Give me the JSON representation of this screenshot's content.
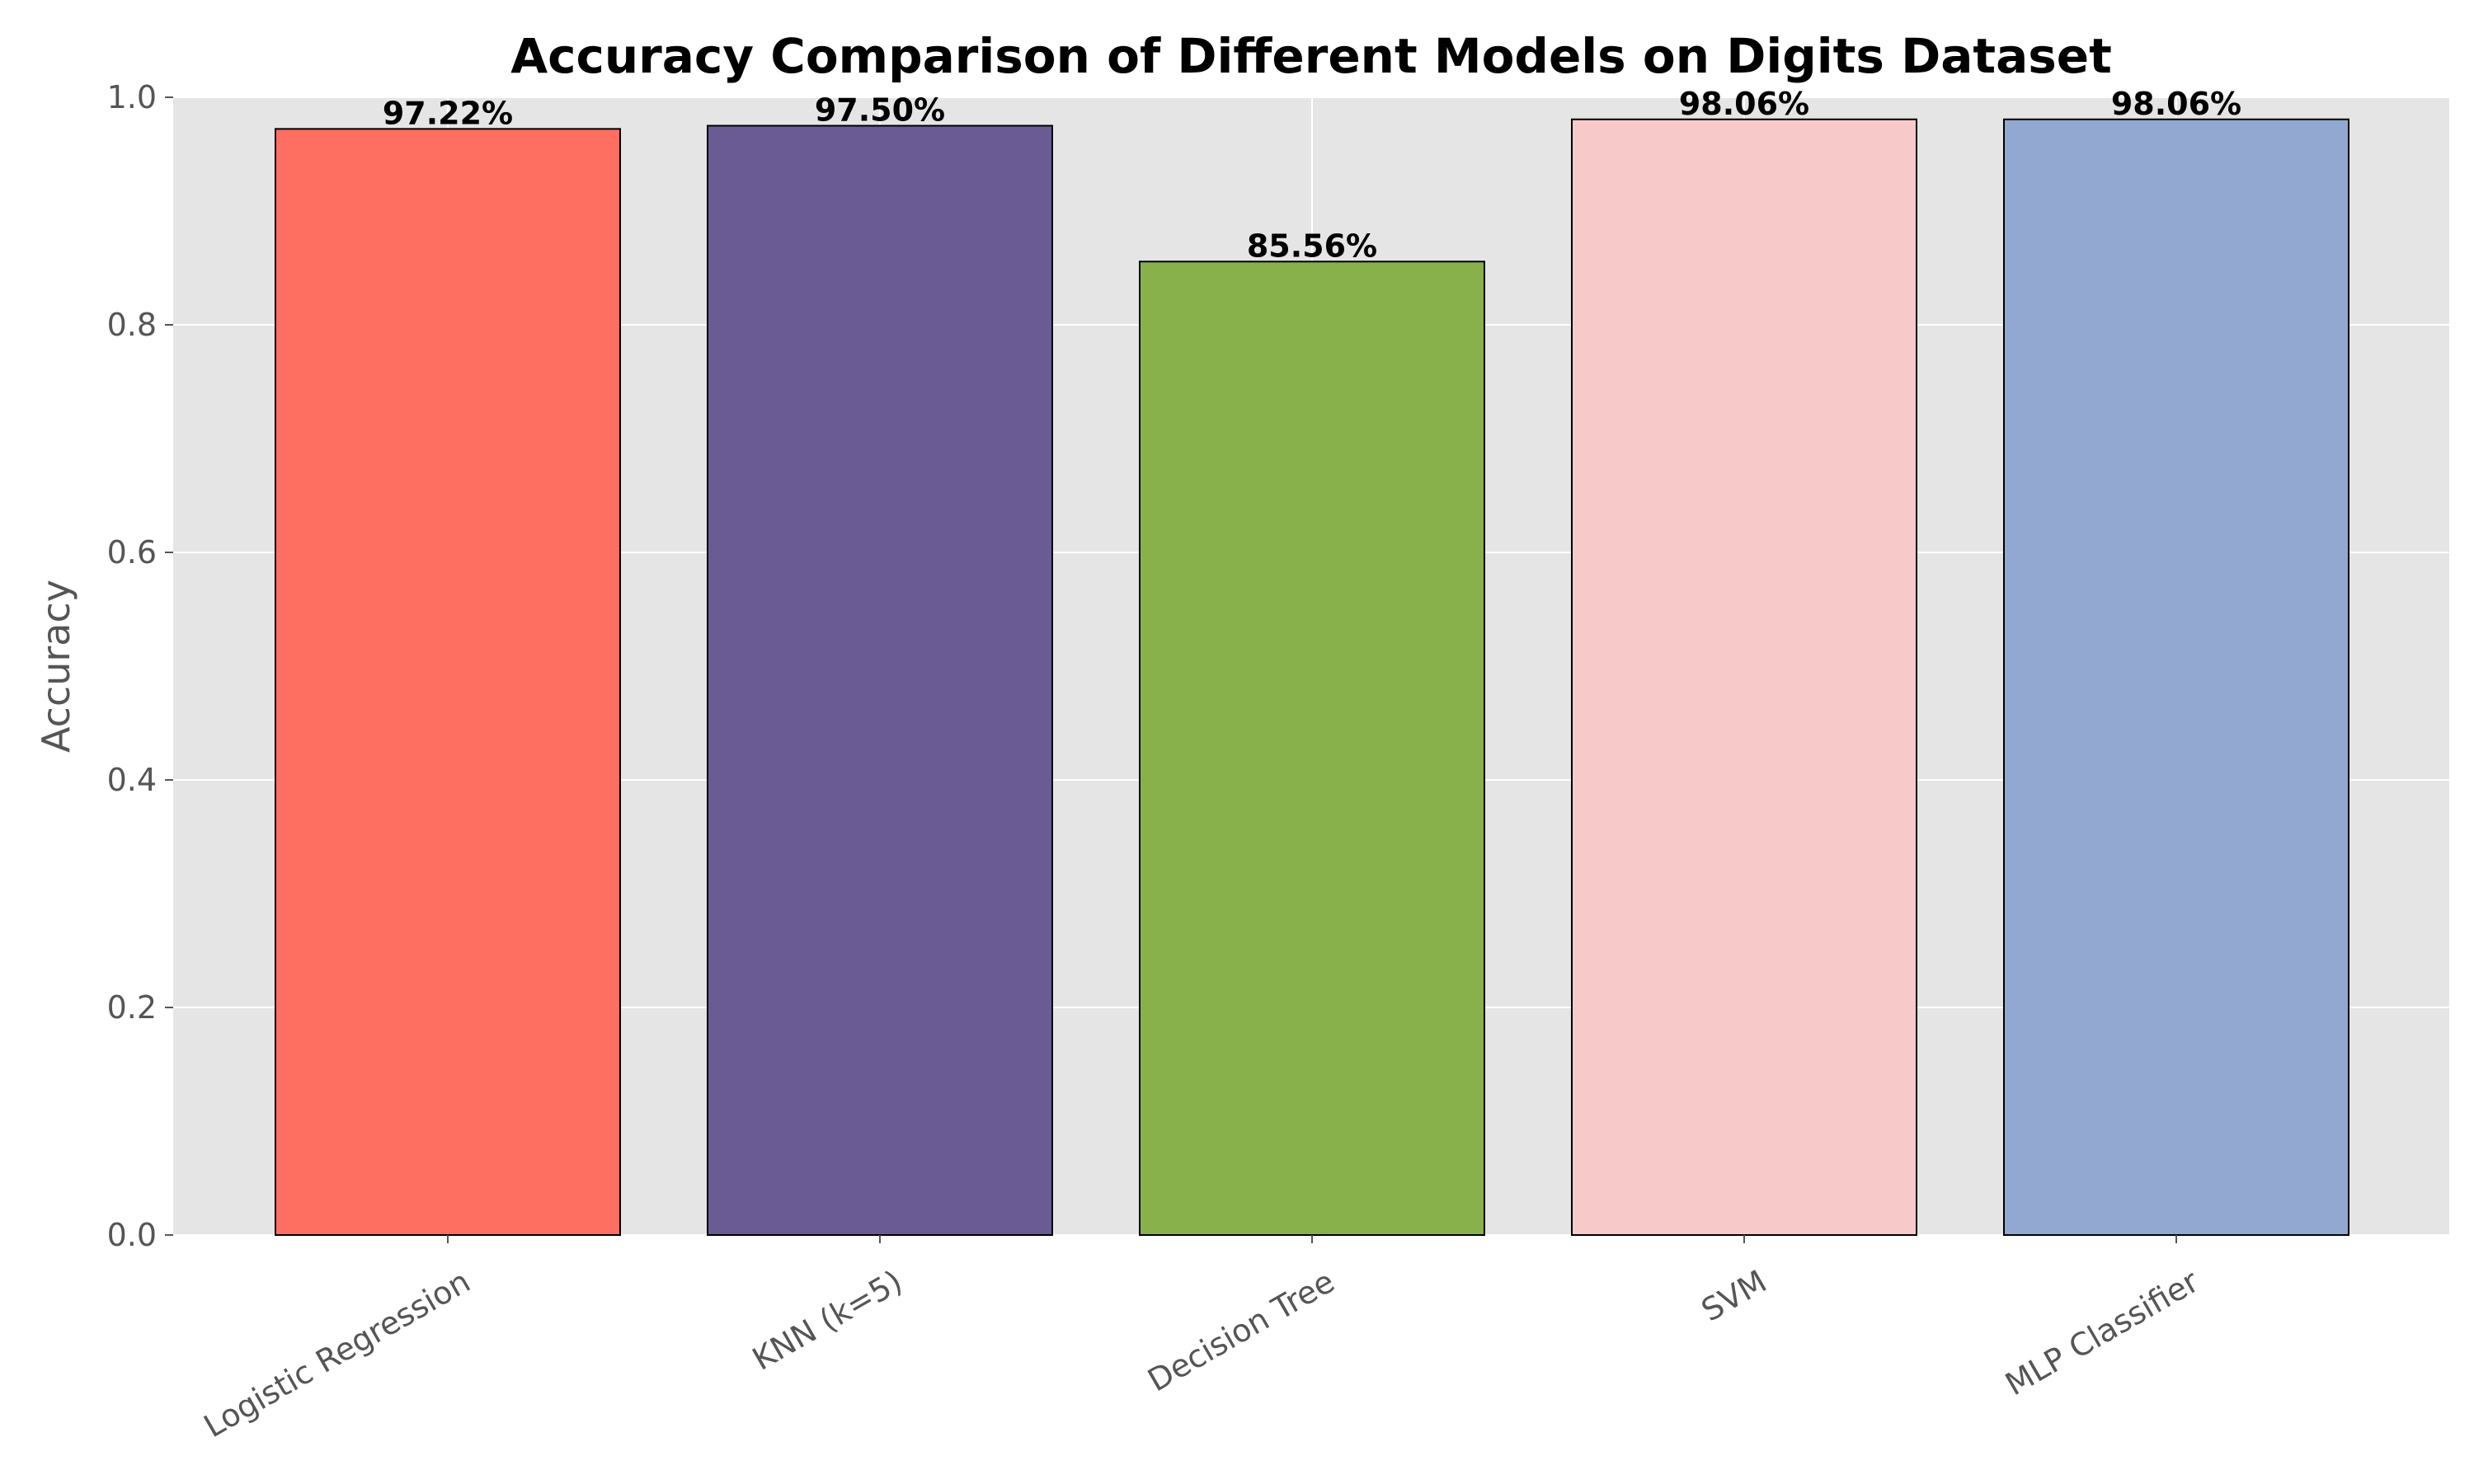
{
  "chart_data": {
    "type": "bar",
    "title": "Accuracy Comparison of Different Models on Digits Dataset",
    "xlabel": "",
    "ylabel": "Accuracy",
    "categories": [
      "Logistic Regression",
      "KNN (k=5)",
      "Decision Tree",
      "SVM",
      "MLP Classifier"
    ],
    "values": [
      0.9722,
      0.975,
      0.8556,
      0.9806,
      0.9806
    ],
    "value_labels": [
      "97.22%",
      "97.50%",
      "85.56%",
      "98.06%",
      "98.06%"
    ],
    "colors": [
      "#ff6f61",
      "#6b5b95",
      "#88b04b",
      "#f7cac9",
      "#92a8d1"
    ],
    "ylim": [
      0,
      1.0
    ],
    "yticks": [
      0.0,
      0.2,
      0.4,
      0.6,
      0.8,
      1.0
    ],
    "ytick_labels": [
      "0.0",
      "0.2",
      "0.4",
      "0.6",
      "0.8",
      "1.0"
    ],
    "grid": true,
    "style": {
      "plot_background": "#e5e5e5",
      "grid_color": "#ffffff",
      "bar_edge": "#000000"
    }
  }
}
